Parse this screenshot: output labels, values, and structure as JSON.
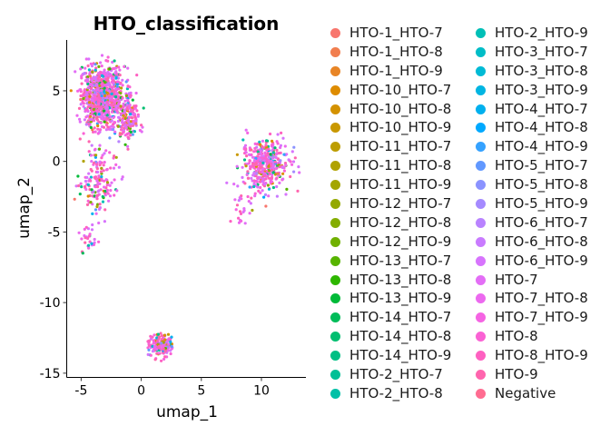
{
  "chart_data": {
    "type": "scatter",
    "title": "HTO_classification",
    "xlabel": "umap_1",
    "ylabel": "umap_2",
    "xlim": [
      -6.2,
      13.7
    ],
    "ylim": [
      -15.3,
      8.6
    ],
    "xticks": [
      -5,
      0,
      5,
      10
    ],
    "yticks": [
      5,
      0,
      -5,
      -10,
      -15
    ],
    "grid": false,
    "legend_position": "right",
    "point_size": 2,
    "series": [
      {
        "name": "HTO-1_HTO-7",
        "color": "#F8766D"
      },
      {
        "name": "HTO-1_HTO-8",
        "color": "#F17E4F"
      },
      {
        "name": "HTO-1_HTO-9",
        "color": "#E88526"
      },
      {
        "name": "HTO-10_HTO-7",
        "color": "#DE8C00"
      },
      {
        "name": "HTO-10_HTO-8",
        "color": "#D49200"
      },
      {
        "name": "HTO-10_HTO-9",
        "color": "#C99800"
      },
      {
        "name": "HTO-11_HTO-7",
        "color": "#BD9D00"
      },
      {
        "name": "HTO-11_HTO-8",
        "color": "#B0A200"
      },
      {
        "name": "HTO-11_HTO-9",
        "color": "#A3A500"
      },
      {
        "name": "HTO-12_HTO-7",
        "color": "#94A900"
      },
      {
        "name": "HTO-12_HTO-8",
        "color": "#84AD00"
      },
      {
        "name": "HTO-12_HTO-9",
        "color": "#70B000"
      },
      {
        "name": "HTO-13_HTO-7",
        "color": "#57B400"
      },
      {
        "name": "HTO-13_HTO-8",
        "color": "#2EB700"
      },
      {
        "name": "HTO-13_HTO-9",
        "color": "#00BA38"
      },
      {
        "name": "HTO-14_HTO-7",
        "color": "#00BC59"
      },
      {
        "name": "HTO-14_HTO-8",
        "color": "#00BE70"
      },
      {
        "name": "HTO-14_HTO-9",
        "color": "#00BF84"
      },
      {
        "name": "HTO-2_HTO-7",
        "color": "#00C096"
      },
      {
        "name": "HTO-2_HTO-8",
        "color": "#00C0A7"
      },
      {
        "name": "HTO-2_HTO-9",
        "color": "#00BFB7"
      },
      {
        "name": "HTO-3_HTO-7",
        "color": "#00BDC7"
      },
      {
        "name": "HTO-3_HTO-8",
        "color": "#00BAD5"
      },
      {
        "name": "HTO-3_HTO-9",
        "color": "#00B5E2"
      },
      {
        "name": "HTO-4_HTO-7",
        "color": "#00B0EE"
      },
      {
        "name": "HTO-4_HTO-8",
        "color": "#00A9FF"
      },
      {
        "name": "HTO-4_HTO-9",
        "color": "#35A2FF"
      },
      {
        "name": "HTO-5_HTO-7",
        "color": "#6198FF"
      },
      {
        "name": "HTO-5_HTO-8",
        "color": "#8B93FF"
      },
      {
        "name": "HTO-5_HTO-9",
        "color": "#A58AFF"
      },
      {
        "name": "HTO-6_HTO-7",
        "color": "#B983FF"
      },
      {
        "name": "HTO-6_HTO-8",
        "color": "#C97BFF"
      },
      {
        "name": "HTO-6_HTO-9",
        "color": "#D774FD"
      },
      {
        "name": "HTO-7",
        "color": "#E36EF6"
      },
      {
        "name": "HTO-7_HTO-8",
        "color": "#EC69EF"
      },
      {
        "name": "HTO-7_HTO-9",
        "color": "#F564E3"
      },
      {
        "name": "HTO-8",
        "color": "#FA62D4"
      },
      {
        "name": "HTO-8_HTO-9",
        "color": "#FE61C1"
      },
      {
        "name": "HTO-9",
        "color": "#FF65AE"
      },
      {
        "name": "Negative",
        "color": "#FF6C91"
      }
    ],
    "clusters": [
      {
        "label": "upper-left main",
        "center": [
          -3.2,
          4.6
        ],
        "sd": [
          1.1,
          1.3
        ],
        "n": 900
      },
      {
        "label": "upper-left tail",
        "center": [
          -1.2,
          3.0
        ],
        "sd": [
          0.6,
          1.0
        ],
        "n": 160
      },
      {
        "label": "left lower arm",
        "center": [
          -3.6,
          -1.5
        ],
        "sd": [
          1.0,
          1.6
        ],
        "n": 160
      },
      {
        "label": "left bottom tip",
        "center": [
          -4.6,
          -5.5
        ],
        "sd": [
          0.5,
          0.6
        ],
        "n": 25
      },
      {
        "label": "right cluster",
        "center": [
          10.3,
          -0.2
        ],
        "sd": [
          1.2,
          1.1
        ],
        "n": 420
      },
      {
        "label": "right bridge",
        "center": [
          8.5,
          -3.6
        ],
        "sd": [
          0.5,
          0.7
        ],
        "n": 25
      },
      {
        "label": "bottom cluster",
        "center": [
          1.6,
          -13.0
        ],
        "sd": [
          0.6,
          0.5
        ],
        "n": 160
      }
    ]
  }
}
